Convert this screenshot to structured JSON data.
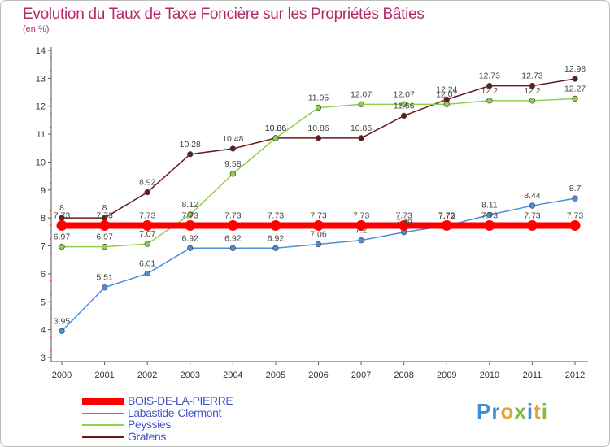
{
  "title": "Evolution du Taux de Taxe Foncière sur les Propriétés Bâties",
  "subtitle": "(en %)",
  "logo_text": "Proxiti",
  "chart_data": {
    "type": "line",
    "title": "Evolution du Taux de Taxe Foncière sur les Propriétés Bâties",
    "ylabel": "(en %)",
    "xlabel": "",
    "ylim": [
      3,
      14
    ],
    "yticks": [
      3,
      4,
      5,
      6,
      7,
      8,
      9,
      10,
      11,
      12,
      13,
      14
    ],
    "categories": [
      "2000",
      "2001",
      "2002",
      "2003",
      "2004",
      "2005",
      "2006",
      "2007",
      "2008",
      "2009",
      "2010",
      "2011",
      "2012"
    ],
    "grid": false,
    "legend_position": "bottom-left",
    "series": [
      {
        "name": "BOIS-DE-LA-PIERRE",
        "color": "#ff0000",
        "values": [
          7.73,
          7.73,
          7.73,
          7.73,
          7.73,
          7.73,
          7.73,
          7.73,
          7.73,
          7.73,
          7.73,
          7.73,
          7.73
        ]
      },
      {
        "name": "Labastide-Clermont",
        "color": "#4a90d9",
        "values": [
          3.95,
          5.51,
          6.01,
          6.92,
          6.92,
          6.92,
          7.06,
          7.2,
          7.49,
          7.72,
          8.11,
          8.44,
          8.7
        ]
      },
      {
        "name": "Peyssies",
        "color": "#8ed04b",
        "values": [
          6.97,
          6.97,
          7.07,
          8.12,
          9.58,
          10.86,
          11.95,
          12.07,
          12.07,
          12.07,
          12.2,
          12.2,
          12.27
        ]
      },
      {
        "name": "Gratens",
        "color": "#6b1a1a",
        "values": [
          8,
          8,
          8.92,
          10.28,
          10.48,
          10.86,
          10.86,
          10.86,
          11.66,
          12.24,
          12.73,
          12.73,
          12.98
        ]
      }
    ]
  }
}
